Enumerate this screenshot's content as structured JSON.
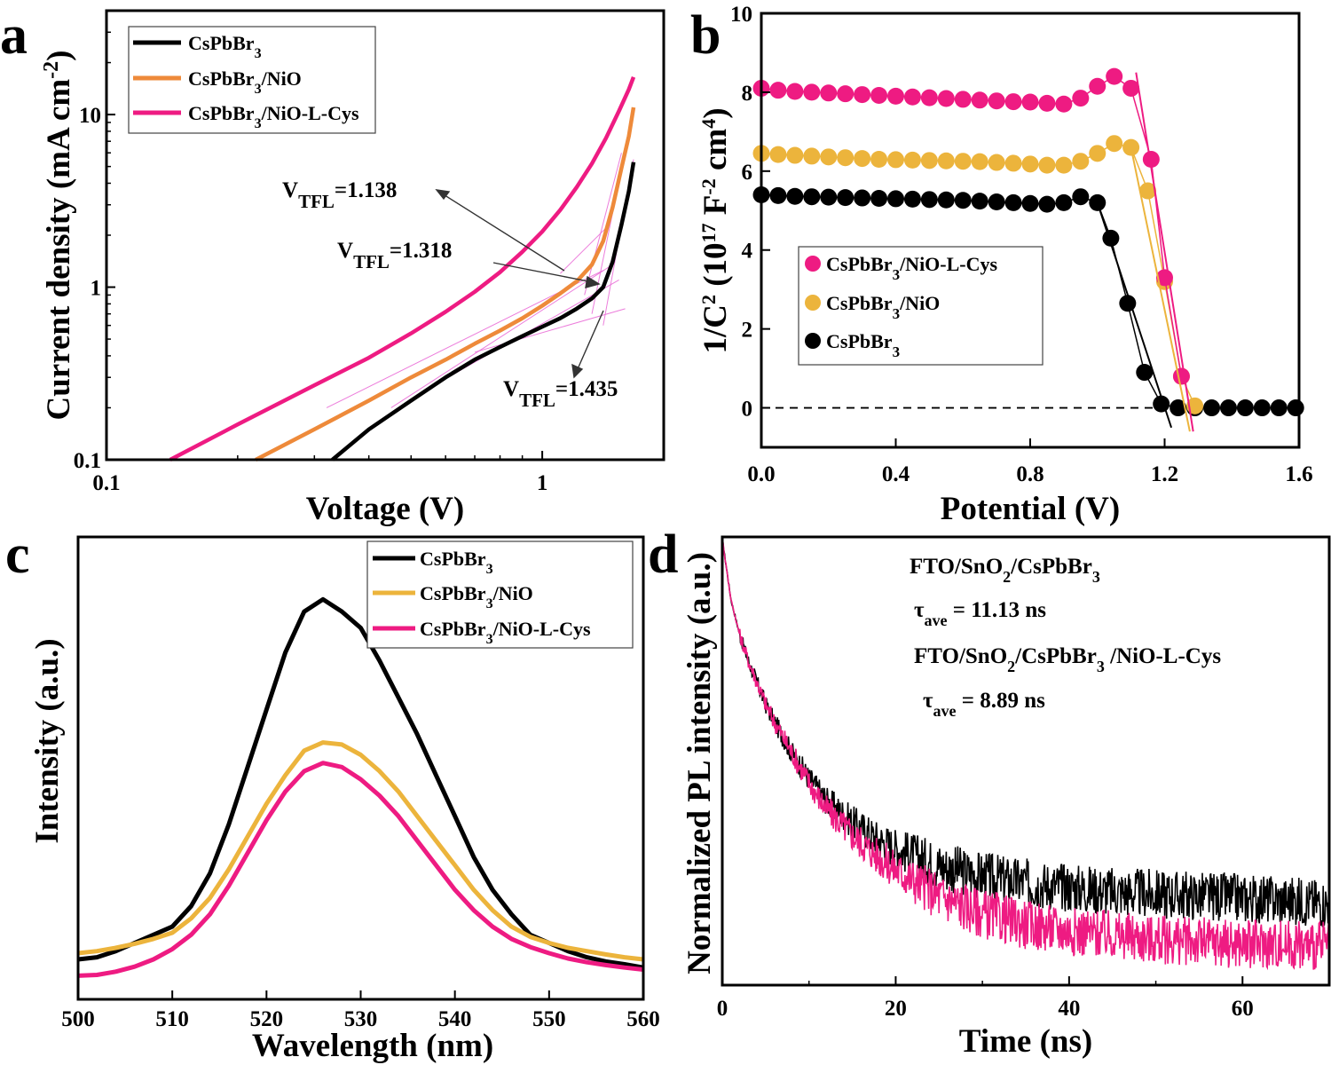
{
  "colors": {
    "black": "#000000",
    "orange": "#ee8a3a",
    "gold": "#ecb43c",
    "magenta": "#ee1b82",
    "fit_line": "#ea6fd8"
  },
  "chart_data": [
    {
      "panel": "a",
      "type": "line",
      "xlabel": "Voltage (V)",
      "ylabel": "Current density (mA cm-2)",
      "ylabel_main": "Current density (mA cm",
      "ylabel_sup": "-2",
      "ylabel_end": ")",
      "xscale": "log",
      "yscale": "log",
      "xlim": [
        0.1,
        1.9
      ],
      "ylim": [
        0.1,
        40
      ],
      "xticks": [
        0.1,
        1
      ],
      "xtick_labels": [
        "0.1",
        "1"
      ],
      "yticks": [
        0.1,
        1,
        10
      ],
      "ytick_labels": [
        "0.1",
        "1",
        "10"
      ],
      "legend_position": "top-left",
      "series": [
        {
          "name": "CsPbBr3",
          "name_main": "CsPbBr",
          "name_sub": "3",
          "color": "#000000",
          "points": [
            [
              0.33,
              0.1
            ],
            [
              0.4,
              0.15
            ],
            [
              0.5,
              0.22
            ],
            [
              0.6,
              0.3
            ],
            [
              0.7,
              0.38
            ],
            [
              0.8,
              0.45
            ],
            [
              0.9,
              0.52
            ],
            [
              1.0,
              0.59
            ],
            [
              1.1,
              0.66
            ],
            [
              1.2,
              0.75
            ],
            [
              1.3,
              0.86
            ],
            [
              1.38,
              1.0
            ],
            [
              1.45,
              1.4
            ],
            [
              1.52,
              2.3
            ],
            [
              1.58,
              3.6
            ],
            [
              1.62,
              5.3
            ]
          ]
        },
        {
          "name": "CsPbBr3/NiO",
          "name_main": "CsPbBr",
          "name_sub": "3",
          "name_tail": "/NiO",
          "color": "#ee8a3a",
          "points": [
            [
              0.22,
              0.1
            ],
            [
              0.3,
              0.15
            ],
            [
              0.4,
              0.22
            ],
            [
              0.5,
              0.3
            ],
            [
              0.6,
              0.38
            ],
            [
              0.7,
              0.47
            ],
            [
              0.8,
              0.56
            ],
            [
              0.9,
              0.66
            ],
            [
              1.0,
              0.78
            ],
            [
              1.1,
              0.92
            ],
            [
              1.2,
              1.08
            ],
            [
              1.3,
              1.35
            ],
            [
              1.38,
              1.85
            ],
            [
              1.45,
              2.9
            ],
            [
              1.52,
              4.9
            ],
            [
              1.58,
              7.5
            ],
            [
              1.62,
              11.0
            ]
          ]
        },
        {
          "name": "CsPbBr3/NiO-L-Cys",
          "name_main": "CsPbBr",
          "name_sub": "3",
          "name_tail": "/NiO-L-Cys",
          "color": "#ee1b82",
          "points": [
            [
              0.14,
              0.1
            ],
            [
              0.2,
              0.16
            ],
            [
              0.3,
              0.27
            ],
            [
              0.4,
              0.39
            ],
            [
              0.5,
              0.54
            ],
            [
              0.6,
              0.72
            ],
            [
              0.7,
              0.94
            ],
            [
              0.8,
              1.22
            ],
            [
              0.9,
              1.6
            ],
            [
              1.0,
              2.1
            ],
            [
              1.1,
              2.8
            ],
            [
              1.2,
              3.8
            ],
            [
              1.3,
              5.2
            ],
            [
              1.4,
              7.3
            ],
            [
              1.5,
              10.5
            ],
            [
              1.58,
              14.0
            ],
            [
              1.62,
              16.5
            ]
          ]
        }
      ],
      "annotations": [
        {
          "text_main": "V",
          "text_sub": "TFL",
          "text_tail": "=1.138",
          "color": "#ee1b82",
          "value": 1.138
        },
        {
          "text_main": "V",
          "text_sub": "TFL",
          "text_tail": "=1.318",
          "color": "#ee8a3a",
          "value": 1.318
        },
        {
          "text_main": "V",
          "text_sub": "TFL",
          "text_tail": "=1.435",
          "color": "#000000",
          "value": 1.435
        }
      ]
    },
    {
      "panel": "b",
      "type": "scatter",
      "xlabel": "Potential (V)",
      "ylabel": "1/C2 (1017 F-2 cm4)",
      "ylabel_parts": [
        "1/C",
        "2",
        " (10",
        "17",
        " F",
        "-2",
        " cm",
        "4",
        ")"
      ],
      "xlim": [
        0,
        1.6
      ],
      "ylim": [
        -1,
        10
      ],
      "xticks": [
        0.0,
        0.4,
        0.8,
        1.2,
        1.6
      ],
      "xtick_labels": [
        "0.0",
        "0.4",
        "0.8",
        "1.2",
        "1.6"
      ],
      "yticks": [
        0,
        2,
        4,
        6,
        8,
        10
      ],
      "ytick_labels": [
        "0",
        "2",
        "4",
        "6",
        "8",
        "10"
      ],
      "legend_position": "center-left",
      "series": [
        {
          "name": "CsPbBr3/NiO-L-Cys",
          "name_main": "CsPbBr",
          "name_sub": "3",
          "name_tail": "/NiO-L-Cys",
          "color": "#ee1b82",
          "x": [
            0.0,
            0.05,
            0.1,
            0.15,
            0.2,
            0.25,
            0.3,
            0.35,
            0.4,
            0.45,
            0.5,
            0.55,
            0.6,
            0.65,
            0.7,
            0.75,
            0.8,
            0.85,
            0.9,
            0.95,
            1.0,
            1.05,
            1.1,
            1.16,
            1.2,
            1.25
          ],
          "y": [
            8.1,
            8.05,
            8.02,
            8.0,
            7.98,
            7.96,
            7.94,
            7.92,
            7.9,
            7.88,
            7.86,
            7.84,
            7.82,
            7.8,
            7.78,
            7.76,
            7.75,
            7.72,
            7.7,
            7.85,
            8.15,
            8.4,
            8.1,
            6.3,
            3.3,
            0.8
          ]
        },
        {
          "name": "CsPbBr3/NiO",
          "name_main": "CsPbBr",
          "name_sub": "3",
          "name_tail": "/NiO",
          "color": "#ecb43c",
          "x": [
            0.0,
            0.05,
            0.1,
            0.15,
            0.2,
            0.25,
            0.3,
            0.35,
            0.4,
            0.45,
            0.5,
            0.55,
            0.6,
            0.65,
            0.7,
            0.75,
            0.8,
            0.85,
            0.9,
            0.95,
            1.0,
            1.05,
            1.1,
            1.15,
            1.2,
            1.25,
            1.29
          ],
          "y": [
            6.45,
            6.42,
            6.4,
            6.38,
            6.36,
            6.34,
            6.32,
            6.3,
            6.29,
            6.28,
            6.27,
            6.26,
            6.25,
            6.24,
            6.22,
            6.2,
            6.18,
            6.15,
            6.15,
            6.25,
            6.45,
            6.7,
            6.6,
            5.5,
            3.2,
            0.8,
            0.05
          ]
        },
        {
          "name": "CsPbBr3",
          "name_main": "CsPbBr",
          "name_sub": "3",
          "color": "#000000",
          "x": [
            0.0,
            0.05,
            0.1,
            0.15,
            0.2,
            0.25,
            0.3,
            0.35,
            0.4,
            0.45,
            0.5,
            0.55,
            0.6,
            0.65,
            0.7,
            0.75,
            0.8,
            0.85,
            0.9,
            0.95,
            1.0,
            1.04,
            1.09,
            1.14,
            1.19,
            1.24,
            1.29,
            1.34,
            1.39,
            1.44,
            1.49,
            1.54,
            1.59
          ],
          "y": [
            5.4,
            5.38,
            5.36,
            5.35,
            5.34,
            5.33,
            5.32,
            5.31,
            5.3,
            5.29,
            5.28,
            5.27,
            5.26,
            5.24,
            5.22,
            5.2,
            5.18,
            5.16,
            5.2,
            5.35,
            5.2,
            4.3,
            2.65,
            0.9,
            0.1,
            0.0,
            0.0,
            0.0,
            0.0,
            0.0,
            0.0,
            0.0,
            0.0
          ]
        }
      ],
      "fit_lines": [
        {
          "color": "#ee1b82",
          "x": [
            1.115,
            1.285
          ],
          "y": [
            8.5,
            -0.6
          ]
        },
        {
          "color": "#ecb43c",
          "x": [
            1.095,
            1.275
          ],
          "y": [
            6.8,
            -0.6
          ]
        },
        {
          "color": "#000000",
          "x": [
            1.0,
            1.22
          ],
          "y": [
            5.2,
            -0.5
          ]
        }
      ],
      "reference_line": {
        "y": 0,
        "style": "dashed"
      }
    },
    {
      "panel": "c",
      "type": "line",
      "xlabel": "Wavelength (nm)",
      "ylabel": "Intensity (a.u.)",
      "xlim": [
        500,
        560
      ],
      "ylim": [
        0,
        1.0
      ],
      "xticks": [
        500,
        510,
        520,
        530,
        540,
        550,
        560
      ],
      "xtick_labels": [
        "500",
        "510",
        "520",
        "530",
        "540",
        "550",
        "560"
      ],
      "yticks": [],
      "legend_position": "top-right",
      "x": [
        500,
        502,
        504,
        506,
        508,
        510,
        512,
        514,
        516,
        518,
        520,
        522,
        524,
        526,
        528,
        530,
        532,
        534,
        536,
        538,
        540,
        542,
        544,
        546,
        548,
        550,
        552,
        554,
        556,
        558,
        560
      ],
      "series": [
        {
          "name": "CsPbBr3",
          "name_main": "CsPbBr",
          "name_sub": "3",
          "color": "#000000",
          "values": [
            0.05,
            0.055,
            0.07,
            0.09,
            0.11,
            0.13,
            0.18,
            0.26,
            0.38,
            0.52,
            0.66,
            0.8,
            0.9,
            0.93,
            0.9,
            0.86,
            0.78,
            0.69,
            0.6,
            0.5,
            0.4,
            0.3,
            0.22,
            0.16,
            0.11,
            0.09,
            0.07,
            0.055,
            0.045,
            0.038,
            0.03
          ]
        },
        {
          "name": "CsPbBr3/NiO",
          "name_main": "CsPbBr",
          "name_sub": "3",
          "name_tail": "/NiO",
          "color": "#ecb43c",
          "values": [
            0.065,
            0.07,
            0.078,
            0.088,
            0.1,
            0.115,
            0.15,
            0.2,
            0.27,
            0.35,
            0.43,
            0.5,
            0.56,
            0.58,
            0.575,
            0.55,
            0.51,
            0.46,
            0.4,
            0.34,
            0.28,
            0.22,
            0.17,
            0.13,
            0.105,
            0.09,
            0.078,
            0.07,
            0.062,
            0.055,
            0.05
          ]
        },
        {
          "name": "CsPbBr3/NiO-L-Cys",
          "name_main": "CsPbBr",
          "name_sub": "3",
          "name_tail": "/NiO-L-Cys",
          "color": "#ee1b82",
          "values": [
            0.01,
            0.012,
            0.02,
            0.032,
            0.05,
            0.075,
            0.11,
            0.16,
            0.23,
            0.31,
            0.39,
            0.46,
            0.51,
            0.53,
            0.52,
            0.49,
            0.45,
            0.4,
            0.34,
            0.28,
            0.22,
            0.17,
            0.13,
            0.1,
            0.08,
            0.065,
            0.052,
            0.043,
            0.036,
            0.03,
            0.025
          ]
        }
      ]
    },
    {
      "panel": "d",
      "type": "line",
      "xlabel": "Time (ns)",
      "ylabel": "Normalized PL intensity (a.u.)",
      "xlim": [
        0,
        70
      ],
      "ylim": [
        0,
        1.0
      ],
      "xticks": [
        0,
        20,
        40,
        60
      ],
      "xtick_labels": [
        "0",
        "20",
        "40",
        "60"
      ],
      "yticks": [],
      "series": [
        {
          "name": "FTO/SnO2/CsPbBr3",
          "color": "#000000",
          "tau_ave_ns": 11.13,
          "x": [
            0,
            1,
            2,
            3,
            4,
            5,
            6,
            8,
            10,
            12,
            15,
            18,
            20,
            25,
            30,
            35,
            40,
            45,
            50,
            55,
            60,
            65,
            70
          ],
          "y": [
            1.0,
            0.86,
            0.78,
            0.72,
            0.67,
            0.62,
            0.58,
            0.51,
            0.45,
            0.4,
            0.35,
            0.31,
            0.29,
            0.25,
            0.225,
            0.21,
            0.2,
            0.19,
            0.185,
            0.18,
            0.175,
            0.17,
            0.165
          ]
        },
        {
          "name": "FTO/SnO2/CsPbBr3 /NiO-L-Cys",
          "color": "#ee1b82",
          "tau_ave_ns": 8.89,
          "x": [
            0,
            1,
            2,
            3,
            4,
            5,
            6,
            8,
            10,
            12,
            15,
            18,
            20,
            25,
            30,
            35,
            40,
            45,
            50,
            55,
            60,
            65,
            70
          ],
          "y": [
            1.0,
            0.86,
            0.78,
            0.72,
            0.67,
            0.62,
            0.58,
            0.51,
            0.44,
            0.38,
            0.32,
            0.27,
            0.24,
            0.18,
            0.14,
            0.115,
            0.1,
            0.09,
            0.08,
            0.075,
            0.07,
            0.068,
            0.066
          ]
        }
      ],
      "annotations": [
        {
          "parts": [
            "FTO/SnO",
            "2",
            "/CsPbBr",
            "3"
          ],
          "color": "#000000"
        },
        {
          "parts": [
            "τ",
            "ave",
            " = 11.13 ns"
          ],
          "color": "#000000"
        },
        {
          "parts": [
            "FTO/SnO",
            "2",
            "/CsPbBr",
            "3",
            " /NiO-L-Cys"
          ],
          "color": "#ee1b82"
        },
        {
          "parts": [
            "τ",
            "ave",
            " = 8.89 ns"
          ],
          "color": "#ee1b82"
        }
      ]
    }
  ],
  "panel_labels": {
    "a": "a",
    "b": "b",
    "c": "c",
    "d": "d"
  }
}
